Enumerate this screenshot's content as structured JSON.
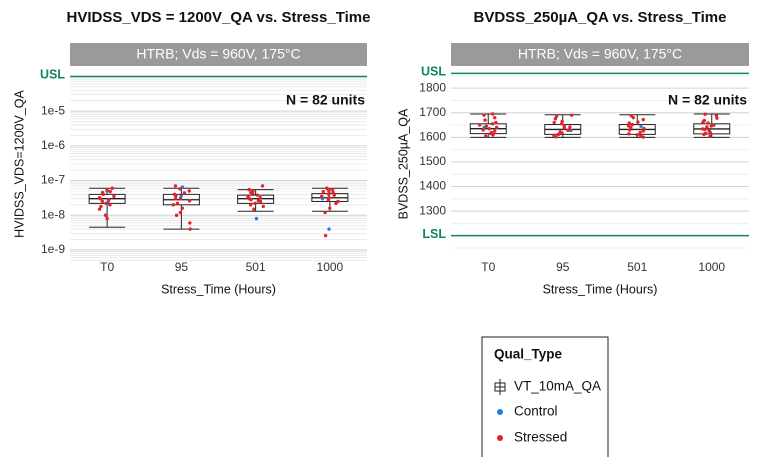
{
  "chart_data": [
    {
      "type": "box",
      "title": "HVIDSS_VDS = 1200V_QA vs. Stress_Time",
      "strip": "HTRB; Vds = 960V, 175°C",
      "annotation": "N = 82 units",
      "ylabel": "HVIDSS_VDS=1200V_QA",
      "xlabel": "Stress_Time (Hours)",
      "log_y": true,
      "grid": true,
      "categories": [
        "T0",
        "95",
        "501",
        "1000"
      ],
      "ylim": [
        4.5e-10,
        0.0002
      ],
      "yticks": [
        {
          "value": 1e-09,
          "label": "1e-9"
        },
        {
          "value": 1e-08,
          "label": "1e-8"
        },
        {
          "value": 1e-07,
          "label": "1e-7"
        },
        {
          "value": 1e-06,
          "label": "1e-6"
        },
        {
          "value": 1e-05,
          "label": "1e-5"
        }
      ],
      "hlines": [
        {
          "label": "USL",
          "value": 0.0001,
          "color": "#12855a"
        }
      ],
      "legend_title": "Qual_Type",
      "boxes": {
        "name": "VT_10mA_QA",
        "min": [
          4.5e-09,
          4e-09,
          1.3e-08,
          1.3e-08
        ],
        "q1": [
          2.2e-08,
          2e-08,
          2.2e-08,
          2.5e-08
        ],
        "median": [
          3e-08,
          2.8e-08,
          3e-08,
          3.2e-08
        ],
        "q3": [
          4e-08,
          4e-08,
          3.8e-08,
          4.2e-08
        ],
        "max": [
          6e-08,
          6e-08,
          5.5e-08,
          6e-08
        ]
      },
      "series": [
        {
          "name": "Control",
          "color": "#1f7fe0",
          "values": [
            [
              5e-08,
              2.5e-08
            ],
            [
              6.5e-08,
              3.5e-08
            ],
            [
              8e-09,
              4.2e-08
            ],
            [
              4e-09,
              3e-08
            ]
          ]
        },
        {
          "name": "Stressed",
          "color": "#e3222b",
          "values": [
            [
              3e-08,
              4.5e-08,
              2.2e-08,
              5.5e-08,
              1.5e-08,
              3.5e-08,
              2.8e-08,
              1e-08,
              4e-08,
              6e-08,
              2e-08,
              3.2e-08,
              8e-09,
              2.5e-08,
              4.8e-08,
              1.8e-08
            ],
            [
              3e-08,
              2e-08,
              5e-08,
              6e-09,
              4e-08,
              1.2e-08,
              2.6e-08,
              3.6e-08,
              5.8e-08,
              1.6e-08,
              4.4e-08,
              2.2e-08,
              7e-08,
              4e-09,
              3e-08,
              1e-08
            ],
            [
              3e-08,
              2.5e-08,
              4e-08,
              5e-08,
              3.4e-08,
              1.8e-08,
              2.8e-08,
              7e-08,
              2.2e-08,
              4.5e-08,
              3.8e-08,
              1.5e-08,
              3.2e-08,
              2.6e-08,
              5.5e-08,
              2e-08
            ],
            [
              3.5e-08,
              2.8e-08,
              4.5e-08,
              5.5e-08,
              2.5e-08,
              6e-08,
              3e-08,
              1.6e-08,
              4e-08,
              2.2e-08,
              3.2e-08,
              5e-08,
              2.6e-09,
              1.2e-08,
              3.8e-08,
              4.8e-08
            ]
          ]
        }
      ]
    },
    {
      "type": "box",
      "title": "BVDSS_250µA_QA vs. Stress_Time",
      "strip": "HTRB; Vds = 960V, 175°C",
      "annotation": "N = 82 units",
      "ylabel": "BVDSS_250µA_QA",
      "xlabel": "Stress_Time (Hours)",
      "log_y": false,
      "grid": true,
      "categories": [
        "T0",
        "95",
        "501",
        "1000"
      ],
      "ylim": [
        1093,
        1890
      ],
      "yticks": [
        1300,
        1400,
        1500,
        1600,
        1700,
        1800
      ],
      "hlines": [
        {
          "label": "USL",
          "value": 1860,
          "color": "#12855a"
        },
        {
          "label": "LSL",
          "value": 1200,
          "color": "#12855a"
        }
      ],
      "boxes": {
        "min": [
          1600,
          1600,
          1600,
          1600
        ],
        "q1": [
          1615,
          1612,
          1612,
          1614
        ],
        "median": [
          1635,
          1632,
          1632,
          1634
        ],
        "q3": [
          1655,
          1652,
          1652,
          1655
        ],
        "max": [
          1695,
          1692,
          1692,
          1695
        ]
      },
      "series": [
        {
          "color": "#1f7fe0",
          "values": [
            [
              1640
            ],
            [
              1628
            ],
            [
              1645
            ],
            [
              1650
            ]
          ]
        },
        {
          "color": "#e3222b",
          "values": [
            [
              1610,
              1625,
              1640,
              1660,
              1680,
              1695,
              1615,
              1635,
              1650,
              1670,
              1605,
              1630,
              1645,
              1620,
              1655,
              1690
            ],
            [
              1608,
              1622,
              1638,
              1655,
              1675,
              1690,
              1618,
              1632,
              1648,
              1665,
              1602,
              1628,
              1642,
              1612,
              1660,
              1685
            ],
            [
              1606,
              1620,
              1636,
              1652,
              1672,
              1688,
              1614,
              1630,
              1646,
              1662,
              1601,
              1626,
              1640,
              1610,
              1658,
              1680
            ],
            [
              1612,
              1626,
              1642,
              1658,
              1678,
              1694,
              1616,
              1634,
              1650,
              1668,
              1604,
              1632,
              1646,
              1620,
              1662,
              1688
            ]
          ]
        }
      ]
    }
  ]
}
